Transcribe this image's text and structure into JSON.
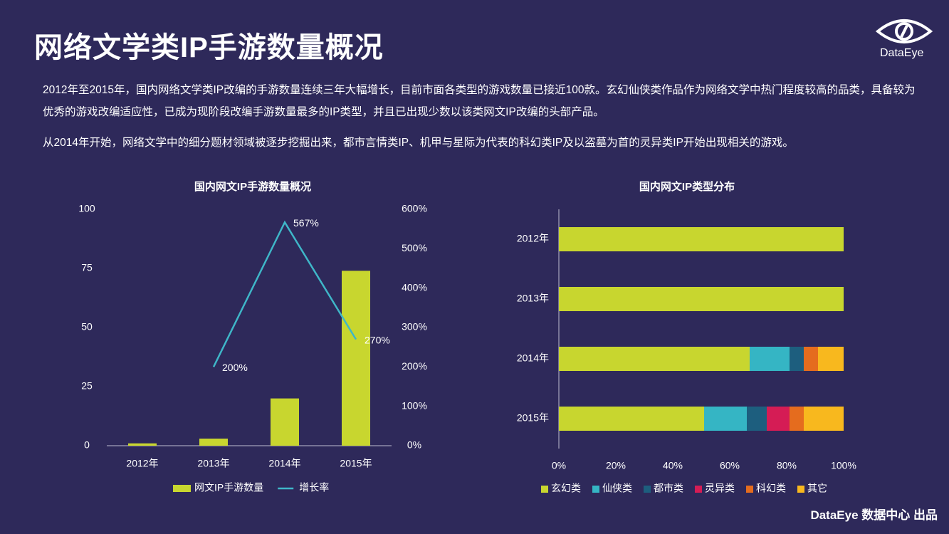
{
  "header": {
    "title": "网络文学类IP手游数量概况",
    "logo": "DataEye"
  },
  "paragraphs": [
    "2012年至2015年，国内网络文学类IP改编的手游数量连续三年大幅增长，目前市面各类型的游戏数量已接近100款。玄幻仙侠类作品作为网络文学中热门程度较高的品类，具备较为优秀的游戏改编适应性，已成为现阶段改编手游数量最多的IP类型，并且已出现少数以该类网文IP改编的头部产品。",
    "从2014年开始，网络文学中的细分题材领域被逐步挖掘出来，都市言情类IP、机甲与星际为代表的科幻类IP及以盗墓为首的灵异类IP开始出现相关的游戏。"
  ],
  "footer": "DataEye 数据中心 出品",
  "chart_data": [
    {
      "type": "bar",
      "title": "国内网文IP手游数量概况",
      "categories": [
        "2012年",
        "2013年",
        "2014年",
        "2015年"
      ],
      "series": [
        {
          "name": "网文IP手游数量",
          "color": "#c8d62f",
          "values": [
            1,
            3,
            20,
            74
          ]
        },
        {
          "name": "增长率",
          "type": "line",
          "axis": "y2",
          "color": "#3fb6c8",
          "values": [
            null,
            200,
            567,
            270
          ],
          "value_labels": [
            null,
            "200%",
            "567%",
            "270%"
          ]
        }
      ],
      "ylim": [
        0,
        100
      ],
      "yticks": [
        0,
        25,
        50,
        75,
        100
      ],
      "y2lim": [
        0,
        600
      ],
      "y2ticks": [
        {
          "value": 0,
          "label": "0%"
        },
        {
          "value": 100,
          "label": "100%"
        },
        {
          "value": 200,
          "label": "200%"
        },
        {
          "value": 300,
          "label": "300%"
        },
        {
          "value": 400,
          "label": "400%"
        },
        {
          "value": 500,
          "label": "500%"
        },
        {
          "value": 600,
          "label": "600%"
        }
      ],
      "legend": "bottom"
    },
    {
      "type": "stacked_barh",
      "title": "国内网文IP类型分布",
      "categories": [
        "2012年",
        "2013年",
        "2014年",
        "2015年"
      ],
      "series": [
        {
          "name": "玄幻类",
          "color": "#c8d62f",
          "values": [
            100,
            100,
            67,
            51
          ]
        },
        {
          "name": "仙侠类",
          "color": "#35b5c4",
          "values": [
            0,
            0,
            14,
            15
          ]
        },
        {
          "name": "都市类",
          "color": "#1d5e7e",
          "values": [
            0,
            0,
            5,
            7
          ]
        },
        {
          "name": "灵异类",
          "color": "#d51c55",
          "values": [
            0,
            0,
            0,
            8
          ]
        },
        {
          "name": "科幻类",
          "color": "#e56c1e",
          "values": [
            0,
            0,
            5,
            5
          ]
        },
        {
          "name": "其它",
          "color": "#f8b81e",
          "values": [
            0,
            0,
            9,
            14
          ]
        }
      ],
      "xlim": [
        0,
        100
      ],
      "xticks": [
        {
          "value": 0,
          "label": "0%"
        },
        {
          "value": 20,
          "label": "20%"
        },
        {
          "value": 40,
          "label": "40%"
        },
        {
          "value": 60,
          "label": "60%"
        },
        {
          "value": 80,
          "label": "80%"
        },
        {
          "value": 100,
          "label": "100%"
        }
      ],
      "legend": "bottom"
    }
  ]
}
